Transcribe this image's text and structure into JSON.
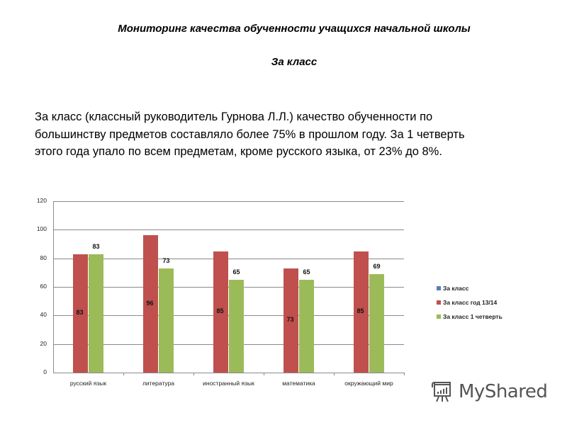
{
  "header": {
    "title": "Мониторинг качества обученности учащихся начальной школы",
    "subtitle": "За класс"
  },
  "paragraph": "За класс (классный руководитель Гурнова Л.Л.) качество обученности по большинству предметов составляло более 75%  в прошлом году. За 1 четверть этого года упало по всем предметам, кроме русского языка, от 23% до 8%.",
  "chart_data": {
    "type": "bar",
    "title": "",
    "xlabel": "",
    "ylabel": "",
    "ylim": [
      0,
      120
    ],
    "yticks": [
      0,
      20,
      40,
      60,
      80,
      100,
      120
    ],
    "grid": true,
    "legend_position": "right",
    "categories": [
      "русский язык",
      "литература",
      "иностранный язык",
      "математика",
      "окружающий мир"
    ],
    "series": [
      {
        "name": "За класс",
        "color": "#4f81bd",
        "values": [
          null,
          null,
          null,
          null,
          null
        ]
      },
      {
        "name": "За класс  год 13/14",
        "color": "#c0504d",
        "values": [
          83,
          96,
          85,
          73,
          85
        ]
      },
      {
        "name": "За класс  1 четверть",
        "color": "#9bbb59",
        "values": [
          83,
          73,
          65,
          65,
          69
        ]
      }
    ]
  },
  "watermark": {
    "text": "MyShared",
    "icon": "presentation-board-icon"
  }
}
